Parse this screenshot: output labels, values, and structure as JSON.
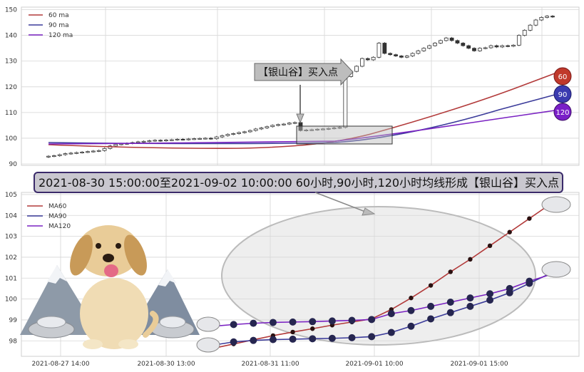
{
  "colors": {
    "ma60": "#b23a3a",
    "ma90": "#3b3b9a",
    "ma120": "#7a22c2",
    "candle": "#333333",
    "grid": "#d6d6d6",
    "panel_bg": "#ffffff",
    "banner_bg": "#c9c7cf",
    "banner_border": "#3a2a6a"
  },
  "top_chart": {
    "type": "candlestick",
    "ylim": [
      90,
      151
    ],
    "yticks": [
      "90",
      "100",
      "110",
      "120",
      "130",
      "140",
      "150"
    ],
    "grid": true,
    "legend_position": "top-left",
    "legend": [
      "60 ma",
      "90 ma",
      "120 ma"
    ],
    "closes": [
      93,
      93.2,
      93.6,
      94,
      94.2,
      94.4,
      94.6,
      94.8,
      95,
      95.2,
      96,
      97,
      97.6,
      97.8,
      98,
      98.3,
      98.6,
      98.8,
      99,
      99.2,
      99,
      99.3,
      99.4,
      99.6,
      99.5,
      99.7,
      99.8,
      99.9,
      100,
      99.8,
      100.5,
      101,
      101.5,
      101.8,
      102.2,
      102.5,
      103,
      103.6,
      104,
      104.5,
      105,
      105.3,
      105.5,
      105.9,
      106.1,
      103,
      103.2,
      103.3,
      103.5,
      103.6,
      103.8,
      104,
      104.2,
      124,
      126,
      128,
      131,
      130.5,
      131.5,
      137,
      133,
      132.5,
      132,
      131.5,
      132,
      133,
      134,
      135,
      136,
      137,
      138,
      139,
      138,
      137,
      136,
      135,
      134,
      135,
      135.2,
      136,
      135.5,
      136,
      135.8,
      136.2,
      140,
      142,
      144,
      146,
      147,
      147.5,
      147.2
    ],
    "badges": [
      "60",
      "90",
      "120"
    ],
    "buy_label": "【银山谷】买入点"
  },
  "banner": {
    "text": "2021-08-30 15:00:00至2021-09-02 10:00:00 60小时,90小时,120小时均线形成【银山谷】买入点"
  },
  "chart_data": {
    "type": "line",
    "x_ticks": [
      "2021-08-27 14:00",
      "2021-08-30 13:00",
      "2021-08-31 11:00",
      "2021-09-01 10:00",
      "2021-09-01 15:00"
    ],
    "ylim": [
      97.6,
      105.1
    ],
    "yticks": [
      "98",
      "99",
      "100",
      "101",
      "102",
      "103",
      "104",
      "105"
    ],
    "grid": true,
    "legend_position": "top-left",
    "series": [
      {
        "name": "MA60",
        "values": [
          97.65,
          97.85,
          98.05,
          98.25,
          98.42,
          98.58,
          98.75,
          98.9,
          99.05,
          99.5,
          100.05,
          100.65,
          101.3,
          101.9,
          102.55,
          103.2,
          103.85,
          104.5
        ]
      },
      {
        "name": "MA90",
        "values": [
          97.8,
          97.95,
          98.02,
          98.06,
          98.08,
          98.1,
          98.12,
          98.15,
          98.2,
          98.4,
          98.7,
          99.05,
          99.35,
          99.65,
          99.95,
          100.3,
          100.75,
          101.2
        ]
      },
      {
        "name": "MA120",
        "values": [
          98.7,
          98.78,
          98.84,
          98.88,
          98.9,
          98.92,
          98.95,
          98.98,
          99.02,
          99.3,
          99.45,
          99.65,
          99.85,
          100.05,
          100.25,
          100.5,
          100.85,
          101.15
        ]
      }
    ]
  }
}
